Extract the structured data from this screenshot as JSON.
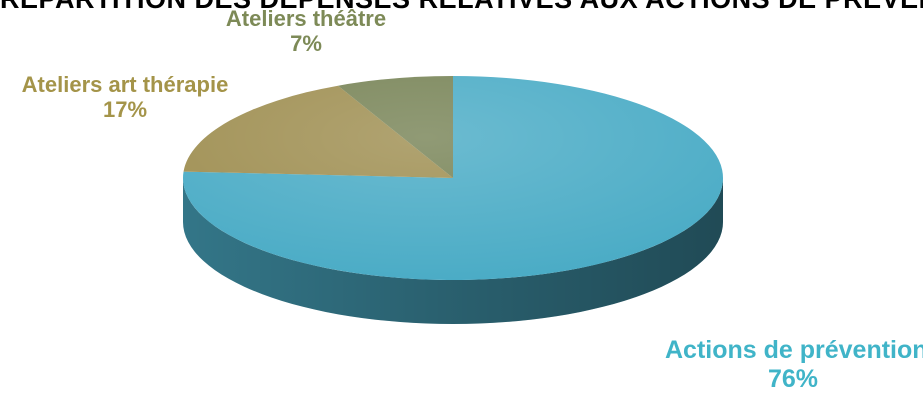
{
  "chart_data": {
    "type": "pie",
    "title": "RÉPARTITION DES DÉPENSES RELATIVES AUX ACTIONS DE PRÉVENTION",
    "categories": [
      "Actions de prévention",
      "Ateliers art thérapie",
      "Ateliers théâtre"
    ],
    "values": [
      76,
      17,
      7
    ],
    "value_labels": [
      "76%",
      "17%",
      "7%"
    ],
    "colors": [
      "#4bacc6",
      "#9f8f52",
      "#788457"
    ],
    "label_colors": [
      "#40b4c8",
      "#a49449",
      "#7d8a57"
    ],
    "title_color": "#000000"
  }
}
